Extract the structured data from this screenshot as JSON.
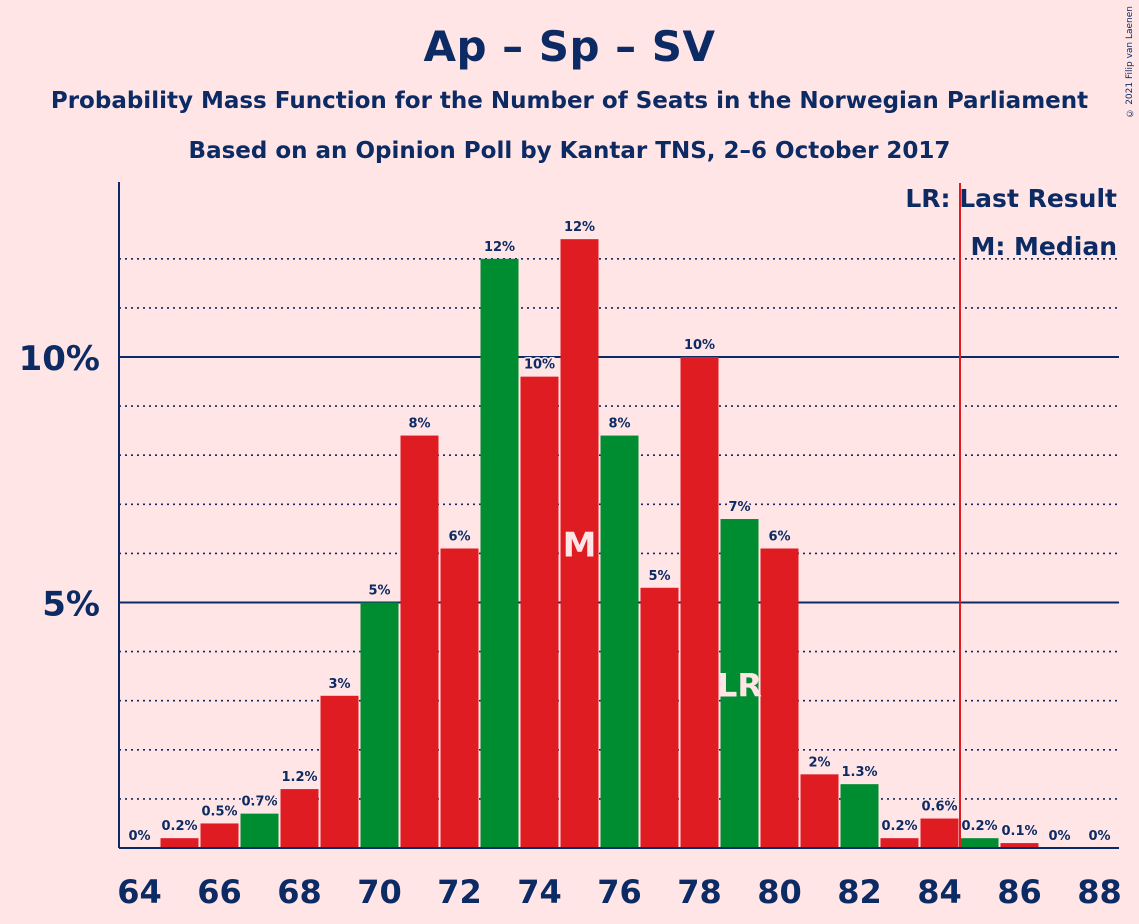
{
  "header": {
    "title": "Ap – Sp – SV",
    "subtitle": "Probability Mass Function for the Number of Seats in the Norwegian Parliament",
    "subtitle2": "Based on an Opinion Poll by Kantar TNS, 2–6 October 2017",
    "copyright": "© 2021 Filip van Laenen"
  },
  "legend": {
    "last_result": "LR: Last Result",
    "median": "M: Median"
  },
  "colors": {
    "background": "#FFE5E5",
    "text": "#0C2A63",
    "bar_red": "#E01C23",
    "bar_green": "#008C31",
    "marker_line": "#E01C23"
  },
  "chart_data": {
    "type": "bar",
    "x": [
      64,
      65,
      66,
      67,
      68,
      69,
      70,
      71,
      72,
      73,
      74,
      75,
      76,
      77,
      78,
      79,
      80,
      81,
      82,
      83,
      84,
      85,
      86,
      87,
      88
    ],
    "values": [
      0,
      0.2,
      0.5,
      0.7,
      1.2,
      3.1,
      5.0,
      8.4,
      6.1,
      12.0,
      9.6,
      12.4,
      8.4,
      5.3,
      10.0,
      6.7,
      6.1,
      1.5,
      1.3,
      0.2,
      0.6,
      0.2,
      0.1,
      0,
      0
    ],
    "data_labels": [
      "0%",
      "0.2%",
      "0.5%",
      "0.7%",
      "1.2%",
      "3%",
      "5%",
      "8%",
      "6%",
      "12%",
      "10%",
      "12%",
      "8%",
      "5%",
      "10%",
      "7%",
      "6%",
      "2%",
      "1.3%",
      "0.2%",
      "0.6%",
      "0.2%",
      "0.1%",
      "0%",
      "0%"
    ],
    "bar_colors": [
      "red",
      "red",
      "red",
      "green",
      "red",
      "red",
      "green",
      "red",
      "red",
      "green",
      "red",
      "red",
      "green",
      "red",
      "red",
      "green",
      "red",
      "red",
      "green",
      "red",
      "red",
      "green",
      "red",
      "red",
      "red"
    ],
    "xticks": [
      "64",
      "66",
      "68",
      "70",
      "72",
      "74",
      "76",
      "78",
      "80",
      "82",
      "84",
      "86",
      "88"
    ],
    "yticks": [
      "5%",
      "10%"
    ],
    "ylim": [
      0,
      13.5
    ],
    "last_result": 85,
    "median": 75,
    "median_label": "M",
    "lr_label": "LR",
    "lr_bar": 79,
    "grid": true,
    "legend_position": "top-right"
  }
}
